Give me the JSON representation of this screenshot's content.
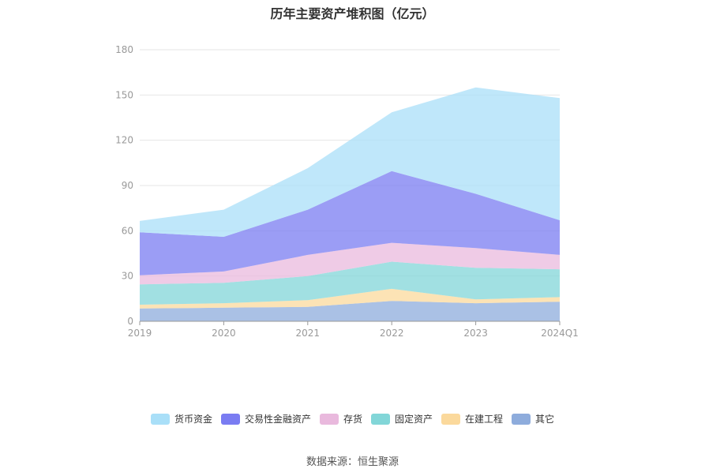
{
  "title": "历年主要资产堆积图（亿元）",
  "source": "数据来源：恒生聚源",
  "chart_data": {
    "type": "area",
    "stacked": true,
    "categories": [
      "2019",
      "2020",
      "2021",
      "2022",
      "2023",
      "2024Q1"
    ],
    "ylim": [
      0,
      180
    ],
    "yticks": [
      "0",
      "30",
      "60",
      "90",
      "120",
      "150",
      "180"
    ],
    "grid": true,
    "legend_position": "bottom",
    "series": [
      {
        "name": "其它",
        "color": "#8eacdc",
        "values": [
          8.5,
          9.0,
          9.5,
          13.5,
          12.0,
          13.0
        ]
      },
      {
        "name": "在建工程",
        "color": "#fbd99c",
        "values": [
          2.5,
          3.0,
          4.5,
          8.0,
          2.5,
          3.0
        ]
      },
      {
        "name": "固定资产",
        "color": "#82d6d8",
        "values": [
          13.5,
          13.5,
          16.0,
          18.0,
          21.0,
          18.5
        ]
      },
      {
        "name": "存货",
        "color": "#e9b9dd",
        "values": [
          6.0,
          7.5,
          14.0,
          12.5,
          13.0,
          9.5
        ]
      },
      {
        "name": "交易性金融资产",
        "color": "#7a7cf2",
        "values": [
          28.5,
          23.0,
          30.0,
          47.5,
          36.0,
          23.0
        ]
      },
      {
        "name": "货币资金",
        "color": "#a9dff8",
        "values": [
          7.5,
          18.0,
          27.5,
          39.0,
          70.5,
          81.0
        ]
      }
    ],
    "legend_order": [
      "货币资金",
      "交易性金融资产",
      "存货",
      "固定资产",
      "在建工程",
      "其它"
    ]
  }
}
